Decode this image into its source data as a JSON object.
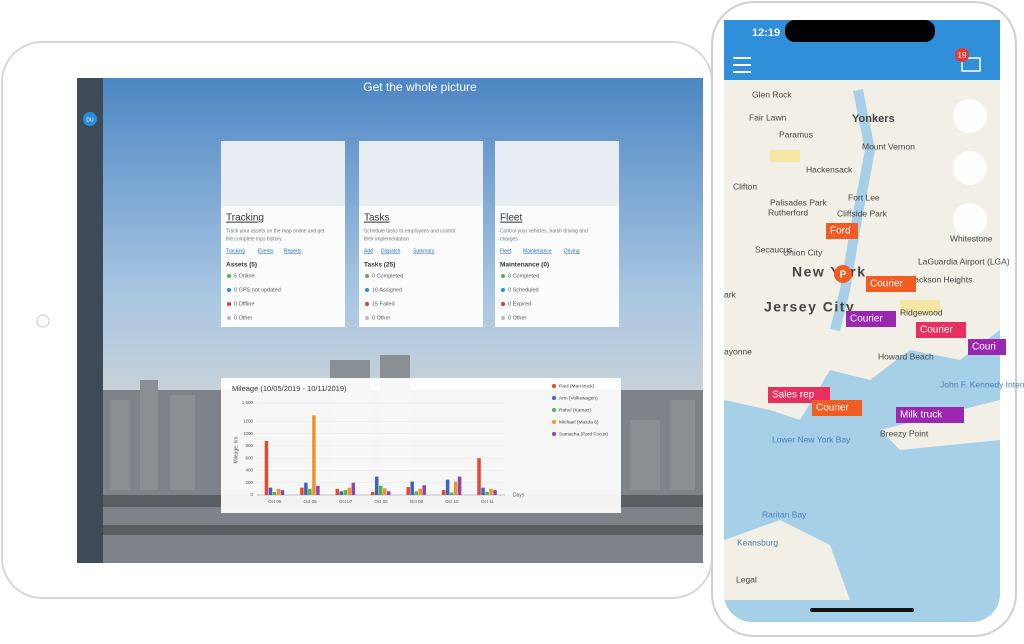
{
  "tablet": {
    "title": "Get the whole picture",
    "avatar": "DU",
    "cards": [
      {
        "title": "Tracking",
        "description": [
          "Track your assets on the map online and get",
          "the complete trips history."
        ],
        "links": [
          "Tracking",
          "Events",
          "Reports"
        ],
        "summary": "Assets (5)",
        "items": [
          "5 Online",
          "0 GPS not updated",
          "0 Offline",
          "0 Other"
        ]
      },
      {
        "title": "Tasks",
        "description": [
          "Schedule tasks to employees and control",
          "their implementation"
        ],
        "links": [
          "Add",
          "Dispatch",
          "Summary"
        ],
        "summary": "Tasks (25)",
        "items": [
          "0 Completed",
          "10 Assigned",
          "15 Failed",
          "0 Other"
        ]
      },
      {
        "title": "Fleet",
        "description": [
          "Control your vehicles, harsh driving and",
          "charges"
        ],
        "links": [
          "Fleet",
          "Maintenance",
          "Driving"
        ],
        "summary": "Maintenance (0)",
        "items": [
          "0 Completed",
          "0 Scheduled",
          "0 Expired",
          "0 Other"
        ]
      }
    ]
  },
  "chart_data": {
    "type": "bar",
    "title": "Mileage (10/05/2019 - 10/11/2019)",
    "y_label": "Mileage, km",
    "x_label": "Days",
    "categories": [
      "Oct 05",
      "Oct 06",
      "Oct 07",
      "Oct 08",
      "Oct 09",
      "Oct 10",
      "Oct 11"
    ],
    "ylim": [
      0,
      1500
    ],
    "yticks": [
      0,
      200,
      400,
      600,
      800,
      1000,
      1200,
      {
        "value": 1500,
        "label": "1,500"
      }
    ],
    "series": [
      {
        "name": "Paul (Man truck)",
        "color": "#e8472f",
        "values": [
          880,
          120,
          100,
          50,
          130,
          80,
          600
        ]
      },
      {
        "name": "Ann (Volkswagen)",
        "color": "#3b63c4",
        "values": [
          120,
          200,
          60,
          300,
          220,
          250,
          120
        ]
      },
      {
        "name": "Rahul (Kamaz)",
        "color": "#5bb04a",
        "values": [
          50,
          100,
          80,
          150,
          60,
          40,
          50
        ]
      },
      {
        "name": "Michael (Mazda 6)",
        "color": "#f0932b",
        "values": [
          100,
          1300,
          120,
          110,
          100,
          220,
          100
        ]
      },
      {
        "name": "Samacha (Ford Focus)",
        "color": "#8e44ad",
        "values": [
          80,
          150,
          200,
          60,
          160,
          300,
          80
        ]
      }
    ]
  },
  "phone": {
    "time": "12:19",
    "badge": "19",
    "map_labels": [
      "Glen Rock",
      "Yonkers",
      "Fair Lawn",
      "Paramus",
      "Mount Vernon",
      "Hackensack",
      "Clifton",
      "Palisades Park",
      "Rutherford",
      "Fort Lee",
      "Cliffside Park",
      "Secaucus",
      "Union City",
      "Whitestone",
      "New York",
      "Jersey City",
      "Jackson Heights",
      "LaGuardia Airport (LGA)",
      "Ridgewood",
      "Howard Beach",
      "ayonne",
      "John F. Kennedy International Airport (JFK)",
      "Lower New York Bay",
      "Breezy Point",
      "Raritan Bay",
      "Keansburg",
      "Legal",
      "ark"
    ],
    "markers": [
      "Ford",
      "Courier",
      "Courier",
      "Courier",
      "Couri",
      "Sales rep",
      "Courier",
      "Milk truck",
      "P"
    ]
  }
}
